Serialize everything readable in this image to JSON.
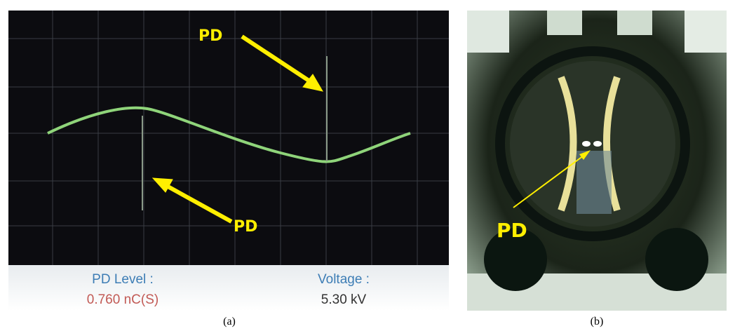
{
  "panel_a": {
    "arrow_label_top": "PD",
    "arrow_label_bottom": "PD",
    "status": {
      "pd_level_label": "PD Level :",
      "pd_level_value": "0.760 nC(S)",
      "voltage_label": "Voltage :",
      "voltage_value": "5.30 kV"
    },
    "caption": "(a)"
  },
  "panel_b": {
    "arrow_label": "PD",
    "caption": "(b)"
  }
}
